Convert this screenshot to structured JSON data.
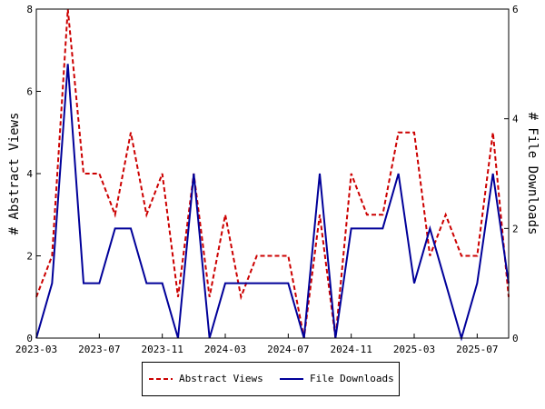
{
  "chart_data": {
    "type": "line",
    "x": [
      "2023-03",
      "2023-04",
      "2023-05",
      "2023-06",
      "2023-07",
      "2023-08",
      "2023-09",
      "2023-10",
      "2023-11",
      "2023-12",
      "2024-01",
      "2024-02",
      "2024-03",
      "2024-04",
      "2024-05",
      "2024-06",
      "2024-07",
      "2024-08",
      "2024-09",
      "2024-10",
      "2024-11",
      "2024-12",
      "2025-01",
      "2025-02",
      "2025-03",
      "2025-04",
      "2025-05",
      "2025-06",
      "2025-07",
      "2025-08",
      "2025-09"
    ],
    "x_tick_labels": [
      "2023-03",
      "2023-07",
      "2023-11",
      "2024-03",
      "2024-07",
      "2024-11",
      "2025-03",
      "2025-07"
    ],
    "series": [
      {
        "name": "Abstract Views",
        "axis": "left",
        "color": "#cc0000",
        "dash": "dashed",
        "values": [
          1,
          2,
          8,
          4,
          4,
          3,
          5,
          3,
          4,
          1,
          4,
          1,
          3,
          1,
          2,
          2,
          2,
          0,
          3,
          0,
          4,
          3,
          3,
          5,
          5,
          2,
          3,
          2,
          2,
          5,
          1
        ]
      },
      {
        "name": "File Downloads",
        "axis": "right",
        "color": "#000099",
        "dash": "solid",
        "values": [
          0,
          1,
          5,
          1,
          1,
          2,
          2,
          1,
          1,
          0,
          3,
          0,
          1,
          1,
          1,
          1,
          1,
          0,
          3,
          0,
          2,
          2,
          2,
          3,
          1,
          2,
          1,
          0,
          1,
          3,
          1
        ]
      }
    ],
    "ylabel": "# Abstract Views",
    "y2label": "# File Downloads",
    "ylim": [
      0,
      8
    ],
    "y2lim": [
      0,
      6
    ],
    "yticks": [
      0,
      2,
      4,
      6,
      8
    ],
    "y2ticks": [
      0,
      2,
      4,
      6
    ],
    "grid": false,
    "legend_position": "bottom"
  }
}
